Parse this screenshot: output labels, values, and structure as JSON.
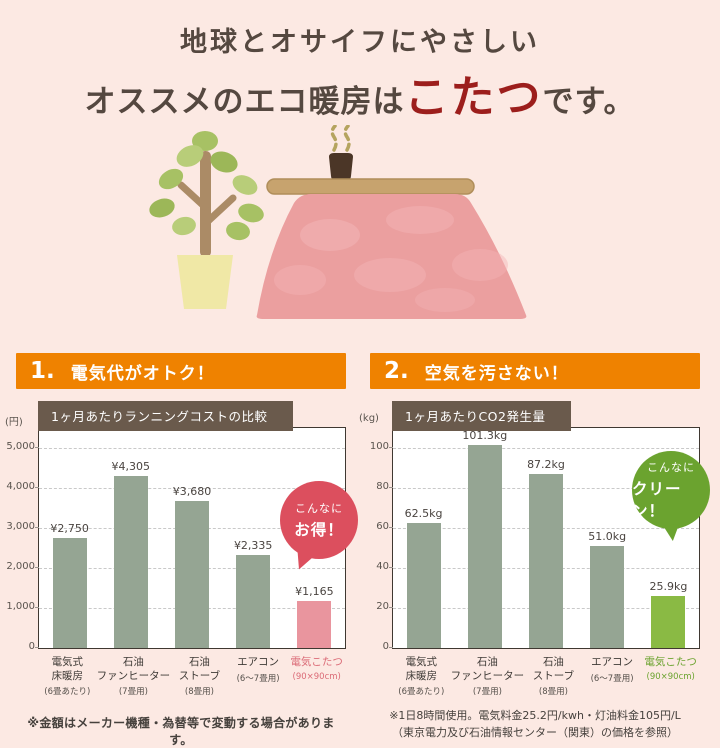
{
  "page": {
    "background_color": "#fce9e3",
    "accent_orange": "#ef8200"
  },
  "header": {
    "line1": "地球とオサイフにやさしい",
    "line2_pre": "オススメのエコ暖房は",
    "line2_accent": "こたつ",
    "line2_post": "です。",
    "accent_color": "#9c1e1c"
  },
  "sections": [
    {
      "number": "1.",
      "title": "電気代がオトク！",
      "bar_color": "#ef8200"
    },
    {
      "number": "2.",
      "title": "空気を汚さない！",
      "bar_color": "#ef8200"
    }
  ],
  "chart_data": [
    {
      "type": "bar",
      "title": "1ヶ月あたりランニングコストの比較",
      "unit_label": "(円)",
      "categories": [
        "電気式\n床暖房",
        "石油\nファンヒーター",
        "石油\nストーブ",
        "エアコン",
        "電気こたつ"
      ],
      "category_notes": [
        "(6畳あたり)",
        "(7畳用)",
        "(8畳用)",
        "(6～7畳用)",
        "(90×90cm)"
      ],
      "values": [
        2750,
        4305,
        3680,
        2335,
        1165
      ],
      "value_labels": [
        "¥2,750",
        "¥4,305",
        "¥3,680",
        "¥2,335",
        "¥1,165"
      ],
      "ylim": [
        0,
        5500
      ],
      "yticks": [
        0,
        1000,
        2000,
        3000,
        4000,
        5000
      ],
      "ytick_labels": [
        "0",
        "1,000",
        "2,000",
        "3,000",
        "4,000",
        "5,000"
      ],
      "grid": "horizontal-dashed",
      "bar_color": "#95a593",
      "highlight_index": 4,
      "highlight_color": "#e9959e",
      "highlight_label_color": "#db6b77",
      "badge": {
        "line1": "こんなに",
        "line2": "お得！",
        "color": "#dc4f5e"
      }
    },
    {
      "type": "bar",
      "title": "1ヶ月あたりCO2発生量",
      "unit_label": "(kg)",
      "categories": [
        "電気式\n床暖房",
        "石油\nファンヒーター",
        "石油\nストーブ",
        "エアコン",
        "電気こたつ"
      ],
      "category_notes": [
        "(6畳あたり)",
        "(7畳用)",
        "(8畳用)",
        "(6～7畳用)",
        "(90×90cm)"
      ],
      "values": [
        62.5,
        101.3,
        87.2,
        51.0,
        25.9
      ],
      "value_labels": [
        "62.5kg",
        "101.3kg",
        "87.2kg",
        "51.0kg",
        "25.9kg"
      ],
      "ylim": [
        0,
        110
      ],
      "yticks": [
        0,
        20,
        40,
        60,
        80,
        100
      ],
      "ytick_labels": [
        "0",
        "20",
        "40",
        "60",
        "80",
        "100"
      ],
      "grid": "horizontal-dashed",
      "bar_color": "#95a593",
      "highlight_index": 4,
      "highlight_color": "#8aba44",
      "highlight_label_color": "#6ba32f",
      "badge": {
        "line1": "こんなに",
        "line2": "クリーン！",
        "color": "#6ba32f"
      }
    }
  ],
  "footnotes": {
    "left": "※金額はメーカー機種・為替等で変動する場合があります。",
    "right_line1": "※1日8時間使用。電気料金25.2円/kwh・灯油料金105円/L",
    "right_line2": "（東京電力及び石油情報センター（関東）の価格を参照）"
  },
  "illustration": {
    "items": [
      "potted-plant-icon",
      "kotatsu-icon",
      "teacup-icon",
      "steam-icon"
    ]
  }
}
